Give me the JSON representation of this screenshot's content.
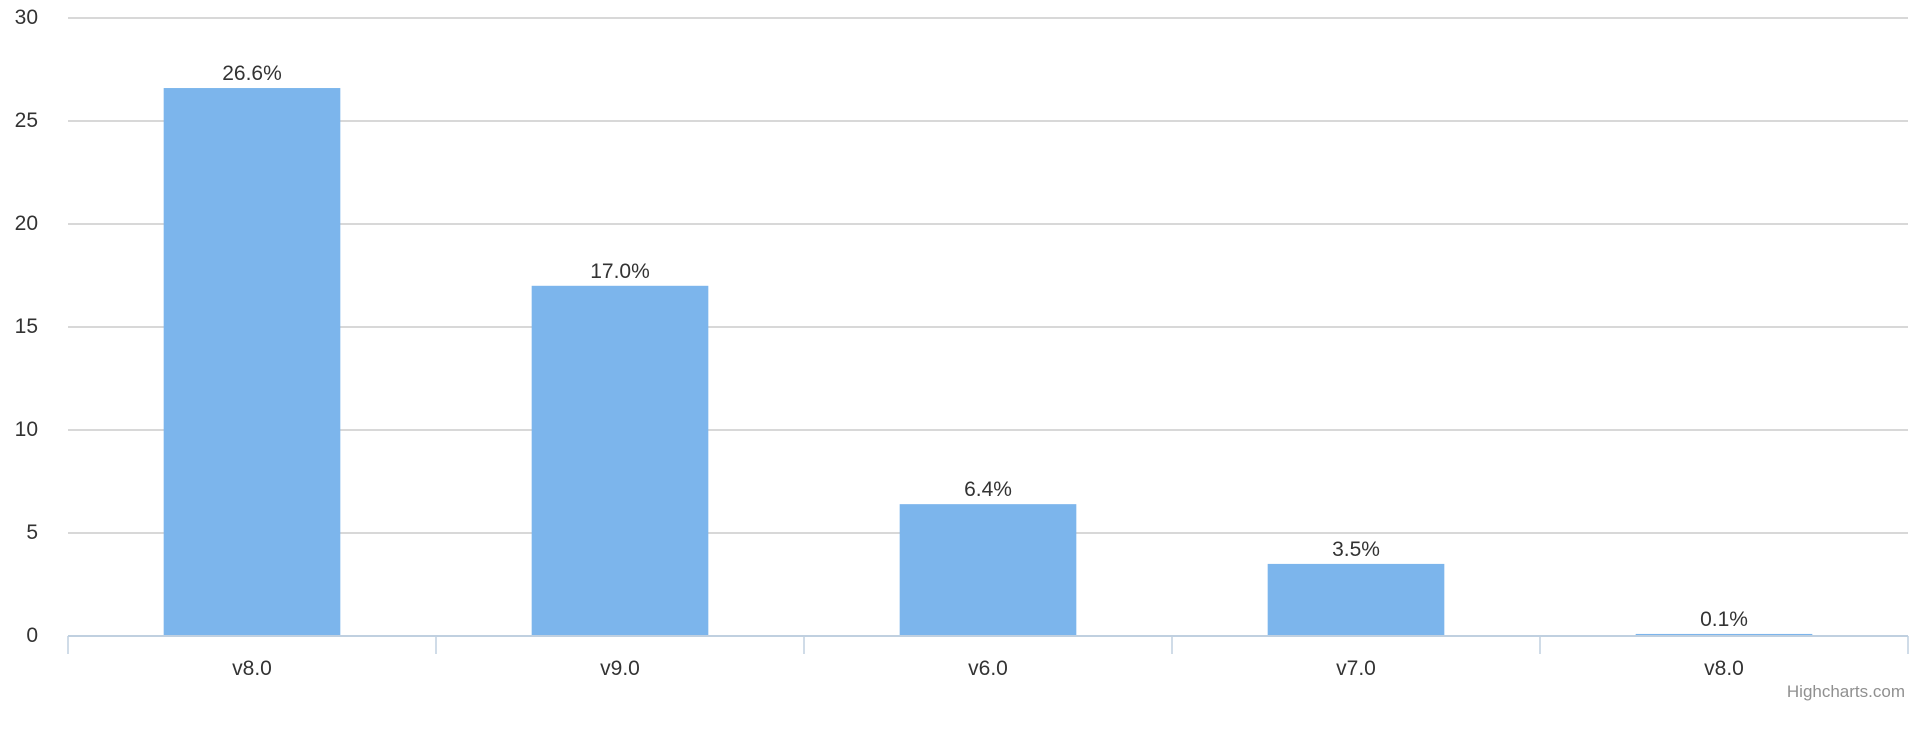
{
  "chart_data": {
    "type": "bar",
    "categories": [
      "v8.0",
      "v9.0",
      "v6.0",
      "v7.0",
      "v8.0"
    ],
    "values": [
      26.6,
      17.0,
      6.4,
      3.5,
      0.1
    ],
    "data_labels": [
      "26.6%",
      "17.0%",
      "6.4%",
      "3.5%",
      "0.1%"
    ],
    "title": "",
    "xlabel": "",
    "ylabel": "",
    "ylim": [
      0,
      30
    ],
    "yticks": [
      0,
      5,
      10,
      15,
      20,
      25,
      30
    ],
    "grid": true,
    "bar_color": "#7cb5ec",
    "grid_color": "#c0c0c0",
    "axis_color": "#c0d0e0"
  },
  "credits": "Highcharts.com"
}
